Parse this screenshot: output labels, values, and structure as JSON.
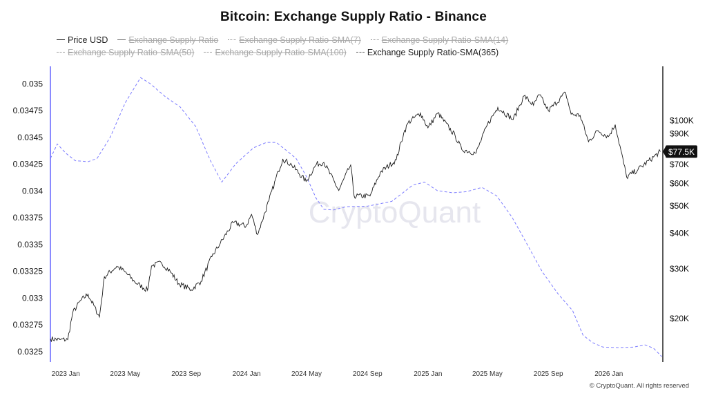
{
  "header": {
    "title": "Bitcoin: Exchange Supply Ratio - Binance"
  },
  "legend": [
    {
      "label": "Price USD",
      "enabled": true,
      "style": "solid"
    },
    {
      "label": "Exchange Supply Ratio",
      "enabled": false,
      "style": "solid-gray"
    },
    {
      "label": "Exchange Supply Ratio-SMA(7)",
      "enabled": false,
      "style": "dot"
    },
    {
      "label": "Exchange Supply Ratio-SMA(14)",
      "enabled": false,
      "style": "dot"
    },
    {
      "label": "Exchange Supply Ratio-SMA(50)",
      "enabled": false,
      "style": "dash"
    },
    {
      "label": "Exchange Supply Ratio-SMA(100)",
      "enabled": false,
      "style": "dash"
    },
    {
      "label": "Exchange Supply Ratio-SMA(365)",
      "enabled": true,
      "style": "dash-dark"
    }
  ],
  "watermark": "CryptoQuant",
  "footer": {
    "text": "© CryptoQuant. All rights reserved"
  },
  "colors": {
    "price": "#1a1a1a",
    "sma365": "#7b7bff",
    "axis_left": "#8a8aff",
    "axis_right": "#222222",
    "badge_bg": "#111111",
    "watermark": "#e6e6ee"
  },
  "chart_data": {
    "type": "line",
    "title": "Bitcoin: Exchange Supply Ratio - Binance",
    "x_type": "date",
    "x_range": [
      "2022-12-01",
      "2026-04-20"
    ],
    "x_ticks": [
      {
        "date": "2023-01-01",
        "label": "2023 Jan"
      },
      {
        "date": "2023-05-01",
        "label": "2023 May"
      },
      {
        "date": "2023-09-01",
        "label": "2023 Sep"
      },
      {
        "date": "2024-01-01",
        "label": "2024 Jan"
      },
      {
        "date": "2024-05-01",
        "label": "2024 May"
      },
      {
        "date": "2024-09-01",
        "label": "2024 Sep"
      },
      {
        "date": "2025-01-01",
        "label": "2025 Jan"
      },
      {
        "date": "2025-05-01",
        "label": "2025 May"
      },
      {
        "date": "2025-09-01",
        "label": "2025 Sep"
      },
      {
        "date": "2026-01-01",
        "label": "2026 Jan"
      }
    ],
    "y_left": {
      "ylim": [
        0.0324,
        0.03516
      ],
      "ticks": [
        {
          "value": 0.035,
          "label": "0.035"
        },
        {
          "value": 0.03475,
          "label": "0.03475"
        },
        {
          "value": 0.0345,
          "label": "0.0345"
        },
        {
          "value": 0.03425,
          "label": "0.03425"
        },
        {
          "value": 0.034,
          "label": "0.034"
        },
        {
          "value": 0.03375,
          "label": "0.03375"
        },
        {
          "value": 0.0335,
          "label": "0.0335"
        },
        {
          "value": 0.03325,
          "label": "0.03325"
        },
        {
          "value": 0.033,
          "label": "0.033"
        },
        {
          "value": 0.03275,
          "label": "0.03275"
        },
        {
          "value": 0.0325,
          "label": "0.0325"
        }
      ]
    },
    "y_right": {
      "scale": "log",
      "ylim": [
        14000,
        155000
      ],
      "ticks": [
        {
          "value": 100000,
          "label": "$100K"
        },
        {
          "value": 90000,
          "label": "$90K"
        },
        {
          "value": 70000,
          "label": "$70K"
        },
        {
          "value": 60000,
          "label": "$60K"
        },
        {
          "value": 50000,
          "label": "$50K"
        },
        {
          "value": 40000,
          "label": "$40K"
        },
        {
          "value": 30000,
          "label": "$30K"
        },
        {
          "value": 20000,
          "label": "$20K"
        }
      ],
      "last_value_label": "$77.5K",
      "last_value": 77500
    },
    "series": [
      {
        "name": "Price USD",
        "axis": "right",
        "points": [
          [
            "2022-12-01",
            16900
          ],
          [
            "2022-12-20",
            16800
          ],
          [
            "2023-01-05",
            16800
          ],
          [
            "2023-01-15",
            20900
          ],
          [
            "2023-01-31",
            23100
          ],
          [
            "2023-02-15",
            24300
          ],
          [
            "2023-03-10",
            20200
          ],
          [
            "2023-03-20",
            28000
          ],
          [
            "2023-04-14",
            30500
          ],
          [
            "2023-04-30",
            29200
          ],
          [
            "2023-05-20",
            26900
          ],
          [
            "2023-06-15",
            25100
          ],
          [
            "2023-06-23",
            30600
          ],
          [
            "2023-07-13",
            31400
          ],
          [
            "2023-07-31",
            29200
          ],
          [
            "2023-08-17",
            26500
          ],
          [
            "2023-09-11",
            25200
          ],
          [
            "2023-10-01",
            27000
          ],
          [
            "2023-10-23",
            33000
          ],
          [
            "2023-11-09",
            36800
          ],
          [
            "2023-12-05",
            43500
          ],
          [
            "2023-12-31",
            42300
          ],
          [
            "2024-01-11",
            46500
          ],
          [
            "2024-01-23",
            39500
          ],
          [
            "2024-02-15",
            52000
          ],
          [
            "2024-03-05",
            66000
          ],
          [
            "2024-03-14",
            73000
          ],
          [
            "2024-04-01",
            69500
          ],
          [
            "2024-04-30",
            60800
          ],
          [
            "2024-05-21",
            70000
          ],
          [
            "2024-06-05",
            71000
          ],
          [
            "2024-07-05",
            56500
          ],
          [
            "2024-07-29",
            69500
          ],
          [
            "2024-08-05",
            54000
          ],
          [
            "2024-09-06",
            54000
          ],
          [
            "2024-09-27",
            65500
          ],
          [
            "2024-10-29",
            72500
          ],
          [
            "2024-11-13",
            90000
          ],
          [
            "2024-11-22",
            98000
          ],
          [
            "2024-12-17",
            106000
          ],
          [
            "2025-01-01",
            94000
          ],
          [
            "2025-01-21",
            106000
          ],
          [
            "2025-02-25",
            88000
          ],
          [
            "2025-03-10",
            79000
          ],
          [
            "2025-04-08",
            76500
          ],
          [
            "2025-05-01",
            96500
          ],
          [
            "2025-05-22",
            111000
          ],
          [
            "2025-06-22",
            100500
          ],
          [
            "2025-07-14",
            122000
          ],
          [
            "2025-08-02",
            113000
          ],
          [
            "2025-08-14",
            123000
          ],
          [
            "2025-09-01",
            108000
          ],
          [
            "2025-10-06",
            125000
          ],
          [
            "2025-10-17",
            105000
          ],
          [
            "2025-11-04",
            104000
          ],
          [
            "2025-11-21",
            84000
          ],
          [
            "2025-12-10",
            92000
          ],
          [
            "2025-12-31",
            87500
          ],
          [
            "2026-01-14",
            96500
          ],
          [
            "2026-02-06",
            63000
          ],
          [
            "2026-03-01",
            67000
          ],
          [
            "2026-04-15",
            77500
          ]
        ]
      },
      {
        "name": "Exchange Supply Ratio-SMA(365)",
        "axis": "left",
        "points": [
          [
            "2022-12-01",
            0.0343
          ],
          [
            "2022-12-15",
            0.034435
          ],
          [
            "2023-01-01",
            0.03435
          ],
          [
            "2023-01-20",
            0.03428
          ],
          [
            "2023-02-15",
            0.03427
          ],
          [
            "2023-03-05",
            0.0343
          ],
          [
            "2023-04-01",
            0.0345
          ],
          [
            "2023-05-01",
            0.03482
          ],
          [
            "2023-06-01",
            0.035055
          ],
          [
            "2023-06-20",
            0.035
          ],
          [
            "2023-07-20",
            0.03488
          ],
          [
            "2023-08-20",
            0.03478
          ],
          [
            "2023-09-20",
            0.0346
          ],
          [
            "2023-10-20",
            0.03428
          ],
          [
            "2023-11-12",
            0.03408
          ],
          [
            "2023-12-10",
            0.03425
          ],
          [
            "2024-01-15",
            0.0344
          ],
          [
            "2024-02-10",
            0.03445
          ],
          [
            "2024-03-01",
            0.03445
          ],
          [
            "2024-03-20",
            0.03438
          ],
          [
            "2024-04-10",
            0.0343
          ],
          [
            "2024-05-01",
            0.03413
          ],
          [
            "2024-05-20",
            0.03393
          ],
          [
            "2024-06-05",
            0.033825
          ],
          [
            "2024-06-25",
            0.03382
          ],
          [
            "2024-07-20",
            0.03385
          ],
          [
            "2024-09-01",
            0.033855
          ],
          [
            "2024-10-20",
            0.0339
          ],
          [
            "2024-12-01",
            0.03405
          ],
          [
            "2024-12-25",
            0.03408
          ],
          [
            "2025-01-20",
            0.034
          ],
          [
            "2025-02-20",
            0.03398
          ],
          [
            "2025-03-20",
            0.03399
          ],
          [
            "2025-04-20",
            0.03403
          ],
          [
            "2025-05-20",
            0.03395
          ],
          [
            "2025-06-20",
            0.03375
          ],
          [
            "2025-07-20",
            0.0335
          ],
          [
            "2025-08-20",
            0.03324
          ],
          [
            "2025-09-20",
            0.03304
          ],
          [
            "2025-10-20",
            0.03288
          ],
          [
            "2025-11-10",
            0.03265
          ],
          [
            "2025-11-30",
            0.03258
          ],
          [
            "2025-12-20",
            0.03254
          ],
          [
            "2026-01-20",
            0.032535
          ],
          [
            "2026-02-20",
            0.03254
          ],
          [
            "2026-03-15",
            0.03256
          ],
          [
            "2026-04-01",
            0.03253
          ],
          [
            "2026-04-18",
            0.03245
          ]
        ]
      }
    ]
  }
}
